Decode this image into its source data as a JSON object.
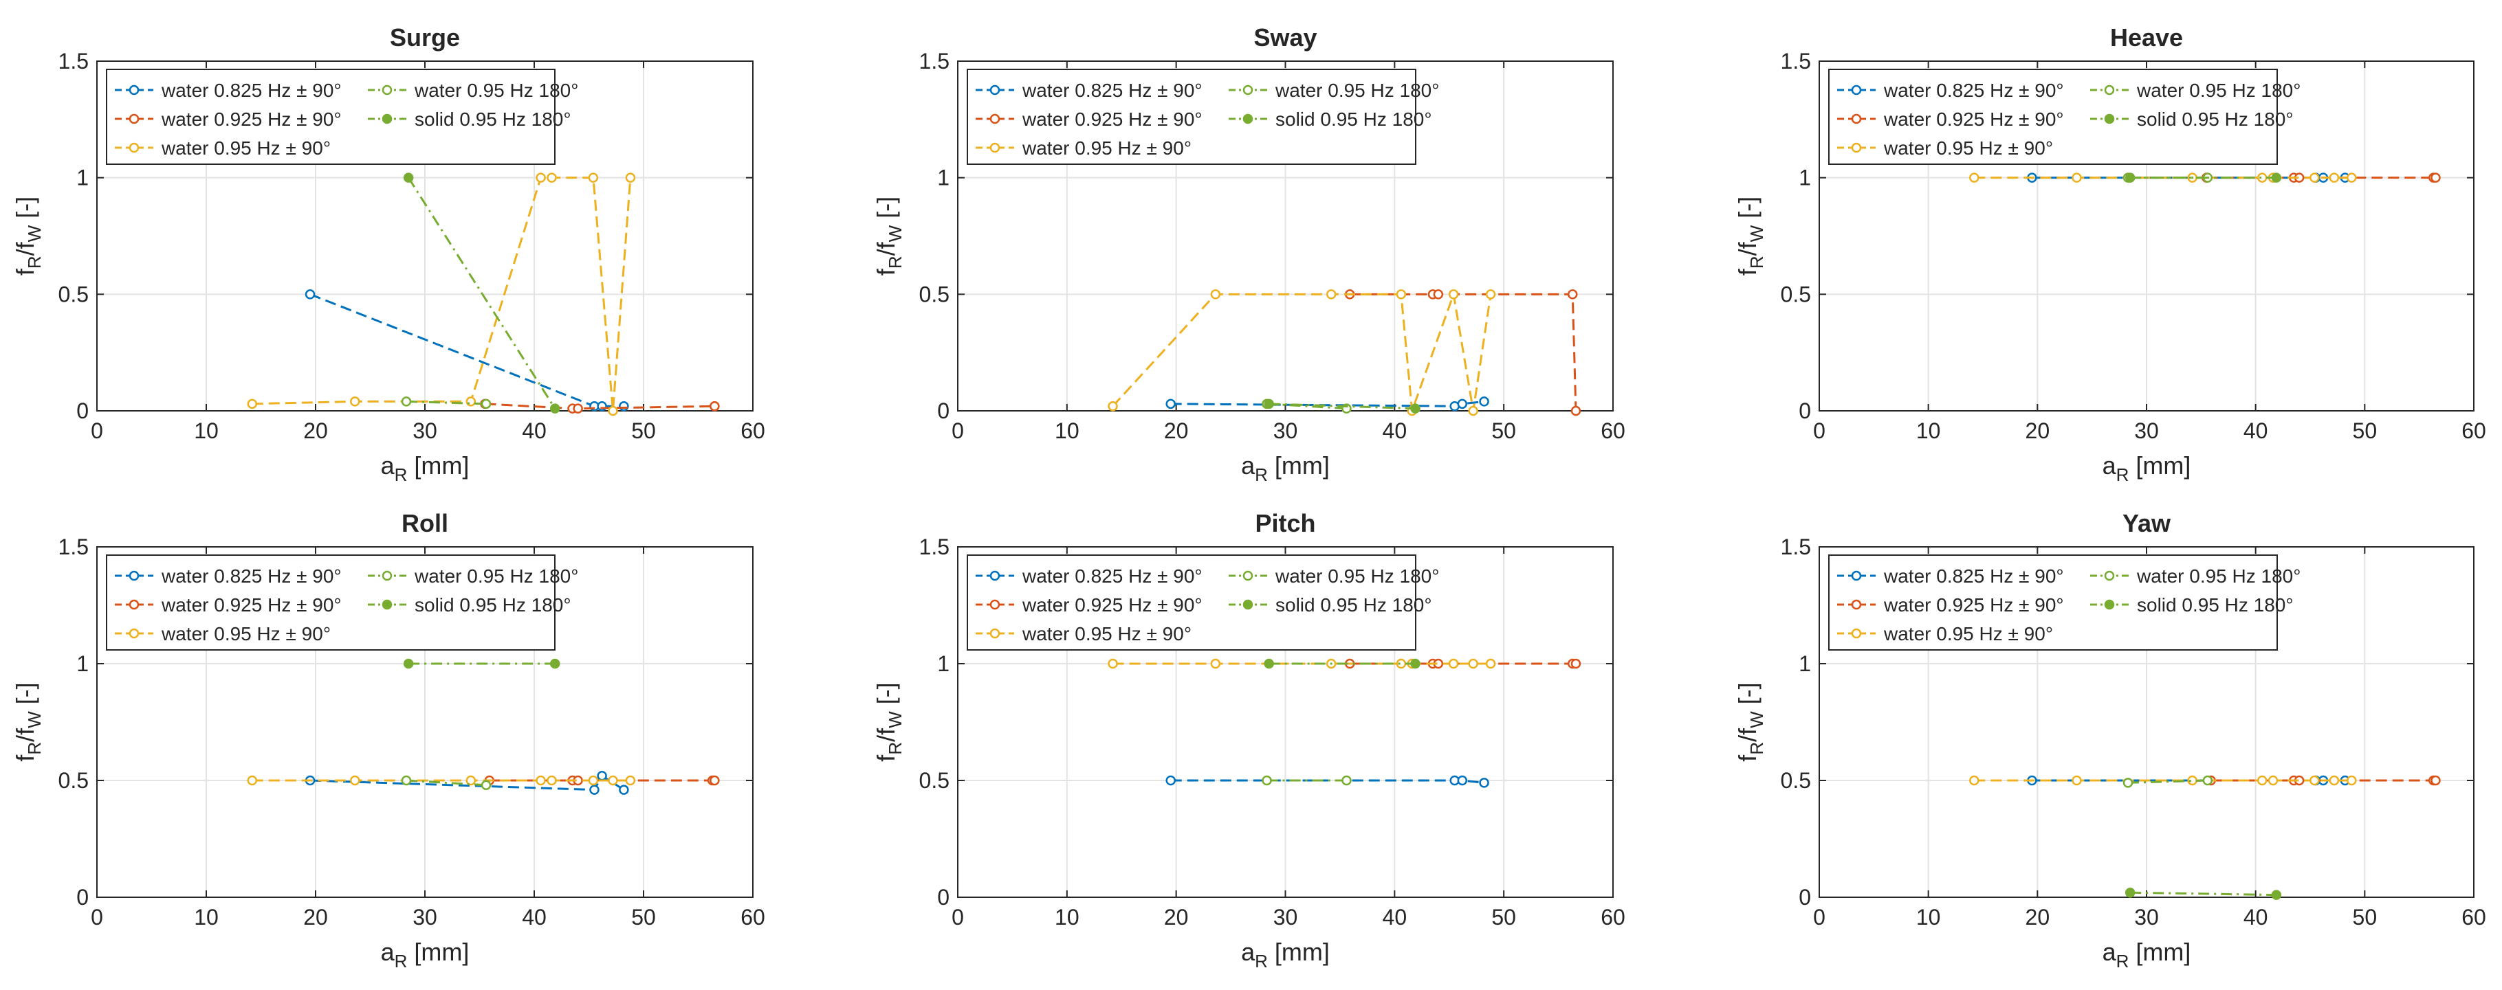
{
  "figure": {
    "description_title": "Response frequency ratio vs response amplitude for six DOF"
  },
  "chart_data": [
    {
      "type": "line",
      "title": "Surge",
      "xlabel": "a_R [mm]",
      "ylabel": "f_R/f_W [-]",
      "xlim": [
        0,
        60
      ],
      "ylim": [
        0,
        1.5
      ],
      "xticks": [
        "0",
        "10",
        "20",
        "30",
        "40",
        "50",
        "60"
      ],
      "yticks": [
        "0",
        "0.5",
        "1",
        "1.5"
      ],
      "grid": true,
      "legend": "top-left",
      "series": [
        {
          "name": "water 0.825 Hz ± 90°",
          "x": [
            19.5,
            45.5,
            46.2,
            48.2
          ],
          "y": [
            0.5,
            0.02,
            0.02,
            0.02
          ]
        },
        {
          "name": "water 0.925 Hz ± 90°",
          "x": [
            35.5,
            43.5,
            44.0,
            56.5,
            56.5
          ],
          "y": [
            0.03,
            0.01,
            0.01,
            0.02,
            0.02
          ]
        },
        {
          "name": "water 0.95 Hz ± 90°",
          "x": [
            14.2,
            23.6,
            34.2,
            40.6,
            41.6,
            45.4,
            47.2,
            48.8
          ],
          "y": [
            0.03,
            0.04,
            0.04,
            1.0,
            1.0,
            1.0,
            0.0,
            1.0
          ]
        },
        {
          "name": "water 0.95 Hz 180°",
          "x": [
            28.3,
            35.6
          ],
          "y": [
            0.04,
            0.03
          ]
        },
        {
          "name": "solid 0.95 Hz 180°",
          "x": [
            28.5,
            41.9
          ],
          "y": [
            1.0,
            0.01
          ]
        }
      ]
    },
    {
      "type": "line",
      "title": "Sway",
      "xlabel": "a_R [mm]",
      "ylabel": "f_R/f_W [-]",
      "xlim": [
        0,
        60
      ],
      "ylim": [
        0,
        1.5
      ],
      "xticks": [
        "0",
        "10",
        "20",
        "30",
        "40",
        "50",
        "60"
      ],
      "yticks": [
        "0",
        "0.5",
        "1",
        "1.5"
      ],
      "grid": true,
      "legend": "top-left",
      "series": [
        {
          "name": "water 0.825 Hz ± 90°",
          "x": [
            19.5,
            45.5,
            46.2,
            48.2
          ],
          "y": [
            0.03,
            0.02,
            0.03,
            0.04
          ]
        },
        {
          "name": "water 0.925 Hz ± 90°",
          "x": [
            35.9,
            43.5,
            44.0,
            56.3,
            56.6
          ],
          "y": [
            0.5,
            0.5,
            0.5,
            0.5,
            0.0
          ]
        },
        {
          "name": "water 0.95 Hz ± 90°",
          "x": [
            14.2,
            23.6,
            34.2,
            40.6,
            41.6,
            45.4,
            47.2,
            48.8
          ],
          "y": [
            0.02,
            0.5,
            0.5,
            0.5,
            0.0,
            0.5,
            0.0,
            0.5
          ]
        },
        {
          "name": "water 0.95 Hz 180°",
          "x": [
            28.3,
            35.6
          ],
          "y": [
            0.03,
            0.01
          ]
        },
        {
          "name": "solid 0.95 Hz 180°",
          "x": [
            28.5,
            41.9
          ],
          "y": [
            0.03,
            0.01
          ]
        }
      ]
    },
    {
      "type": "line",
      "title": "Heave",
      "xlabel": "a_R [mm]",
      "ylabel": "f_R/f_W [-]",
      "xlim": [
        0,
        60
      ],
      "ylim": [
        0,
        1.5
      ],
      "xticks": [
        "0",
        "10",
        "20",
        "30",
        "40",
        "50",
        "60"
      ],
      "yticks": [
        "0",
        "0.5",
        "1",
        "1.5"
      ],
      "grid": true,
      "legend": "top-left",
      "series": [
        {
          "name": "water 0.825 Hz ± 90°",
          "x": [
            19.5,
            45.5,
            46.2,
            48.2
          ],
          "y": [
            1.0,
            1.0,
            1.0,
            1.0
          ]
        },
        {
          "name": "water 0.925 Hz ± 90°",
          "x": [
            35.5,
            43.5,
            44.0,
            56.3,
            56.5
          ],
          "y": [
            1.0,
            1.0,
            1.0,
            1.0,
            1.0
          ]
        },
        {
          "name": "water 0.95 Hz ± 90°",
          "x": [
            14.2,
            23.6,
            34.2,
            40.6,
            41.6,
            45.4,
            47.2,
            48.8
          ],
          "y": [
            1.0,
            1.0,
            1.0,
            1.0,
            1.0,
            1.0,
            1.0,
            1.0
          ]
        },
        {
          "name": "water 0.95 Hz 180°",
          "x": [
            28.3,
            35.6
          ],
          "y": [
            1.0,
            1.0
          ]
        },
        {
          "name": "solid 0.95 Hz 180°",
          "x": [
            28.5,
            41.9
          ],
          "y": [
            1.0,
            1.0
          ]
        }
      ]
    },
    {
      "type": "line",
      "title": "Roll",
      "xlabel": "a_R [mm]",
      "ylabel": "f_R/f_W [-]",
      "xlim": [
        0,
        60
      ],
      "ylim": [
        0,
        1.5
      ],
      "xticks": [
        "0",
        "10",
        "20",
        "30",
        "40",
        "50",
        "60"
      ],
      "yticks": [
        "0",
        "0.5",
        "1",
        "1.5"
      ],
      "grid": true,
      "legend": "top-left",
      "series": [
        {
          "name": "water 0.825 Hz ± 90°",
          "x": [
            19.5,
            45.5,
            46.2,
            48.2
          ],
          "y": [
            0.5,
            0.46,
            0.52,
            0.46
          ]
        },
        {
          "name": "water 0.925 Hz ± 90°",
          "x": [
            35.9,
            43.5,
            44.0,
            56.3,
            56.5
          ],
          "y": [
            0.5,
            0.5,
            0.5,
            0.5,
            0.5
          ]
        },
        {
          "name": "water 0.95 Hz ± 90°",
          "x": [
            14.2,
            23.6,
            34.2,
            40.6,
            41.6,
            45.4,
            47.2,
            48.8
          ],
          "y": [
            0.5,
            0.5,
            0.5,
            0.5,
            0.5,
            0.5,
            0.5,
            0.5
          ]
        },
        {
          "name": "water 0.95 Hz 180°",
          "x": [
            28.3,
            35.6
          ],
          "y": [
            0.5,
            0.48
          ]
        },
        {
          "name": "solid 0.95 Hz 180°",
          "x": [
            28.5,
            41.9
          ],
          "y": [
            1.0,
            1.0
          ]
        }
      ]
    },
    {
      "type": "line",
      "title": "Pitch",
      "xlabel": "a_R [mm]",
      "ylabel": "f_R/f_W [-]",
      "xlim": [
        0,
        60
      ],
      "ylim": [
        0,
        1.5
      ],
      "xticks": [
        "0",
        "10",
        "20",
        "30",
        "40",
        "50",
        "60"
      ],
      "yticks": [
        "0",
        "0.5",
        "1",
        "1.5"
      ],
      "grid": true,
      "legend": "top-left",
      "series": [
        {
          "name": "water 0.825 Hz ± 90°",
          "x": [
            19.5,
            45.5,
            46.2,
            48.2
          ],
          "y": [
            0.5,
            0.5,
            0.5,
            0.49
          ]
        },
        {
          "name": "water 0.925 Hz ± 90°",
          "x": [
            35.9,
            43.5,
            44.0,
            56.3,
            56.6
          ],
          "y": [
            1.0,
            1.0,
            1.0,
            1.0,
            1.0
          ]
        },
        {
          "name": "water 0.95 Hz ± 90°",
          "x": [
            14.2,
            23.6,
            34.2,
            40.6,
            41.6,
            45.4,
            47.2,
            48.8
          ],
          "y": [
            1.0,
            1.0,
            1.0,
            1.0,
            1.0,
            1.0,
            1.0,
            1.0
          ]
        },
        {
          "name": "water 0.95 Hz 180°",
          "x": [
            28.3,
            35.6
          ],
          "y": [
            0.5,
            0.5
          ]
        },
        {
          "name": "solid 0.95 Hz 180°",
          "x": [
            28.5,
            41.9
          ],
          "y": [
            1.0,
            1.0
          ]
        }
      ]
    },
    {
      "type": "line",
      "title": "Yaw",
      "xlabel": "a_R [mm]",
      "ylabel": "f_R/f_W [-]",
      "xlim": [
        0,
        60
      ],
      "ylim": [
        0,
        1.5
      ],
      "xticks": [
        "0",
        "10",
        "20",
        "30",
        "40",
        "50",
        "60"
      ],
      "yticks": [
        "0",
        "0.5",
        "1",
        "1.5"
      ],
      "grid": true,
      "legend": "top-left",
      "series": [
        {
          "name": "water 0.825 Hz ± 90°",
          "x": [
            19.5,
            45.5,
            46.2,
            48.2
          ],
          "y": [
            0.5,
            0.5,
            0.5,
            0.5
          ]
        },
        {
          "name": "water 0.925 Hz ± 90°",
          "x": [
            35.9,
            43.5,
            44.0,
            56.3,
            56.5
          ],
          "y": [
            0.5,
            0.5,
            0.5,
            0.5,
            0.5
          ]
        },
        {
          "name": "water 0.95 Hz ± 90°",
          "x": [
            14.2,
            23.6,
            34.2,
            40.6,
            41.6,
            45.4,
            47.2,
            48.8
          ],
          "y": [
            0.5,
            0.5,
            0.5,
            0.5,
            0.5,
            0.5,
            0.5,
            0.5
          ]
        },
        {
          "name": "water 0.95 Hz 180°",
          "x": [
            28.3,
            35.6
          ],
          "y": [
            0.49,
            0.5
          ]
        },
        {
          "name": "solid 0.95 Hz 180°",
          "x": [
            28.5,
            41.9
          ],
          "y": [
            0.02,
            0.01
          ]
        }
      ]
    }
  ],
  "series_styles": [
    {
      "name": "water 0.825 Hz ± 90°",
      "color": "#0072BD",
      "dash": "dashed",
      "marker": "open-circle"
    },
    {
      "name": "water 0.925 Hz ± 90°",
      "color": "#D95319",
      "dash": "dashed",
      "marker": "open-circle"
    },
    {
      "name": "water 0.95 Hz ± 90°",
      "color": "#EDB120",
      "dash": "dashed",
      "marker": "open-circle"
    },
    {
      "name": "water 0.95 Hz 180°",
      "color": "#77AC30",
      "dash": "dashdot",
      "marker": "open-circle"
    },
    {
      "name": "solid 0.95 Hz 180°",
      "color": "#77AC30",
      "dash": "dashdot",
      "marker": "filled-circle"
    }
  ]
}
